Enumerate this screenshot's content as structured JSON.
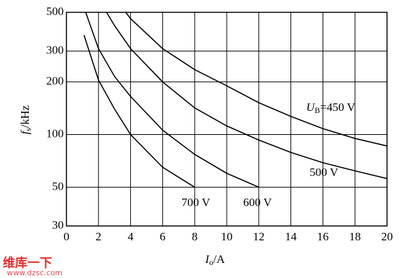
{
  "chart_data": {
    "type": "line",
    "y_label": {
      "main": "f",
      "sub": "s",
      "rest": "/kHz"
    },
    "x_label": {
      "main": "I",
      "sub": "o",
      "rest": "/A"
    },
    "label_prefix": {
      "main": "U",
      "sub": "B",
      "rest": "="
    },
    "xlim": [
      0,
      20
    ],
    "xticks": [
      0,
      2,
      4,
      6,
      8,
      10,
      12,
      14,
      16,
      18,
      20
    ],
    "ylim": [
      30,
      500
    ],
    "yticks": [
      30,
      50,
      100,
      200,
      300,
      500
    ],
    "log_y": true,
    "grid": true,
    "series": [
      {
        "name": "450 V",
        "color": "#000000",
        "x": [
          3.7,
          4,
          6,
          8,
          10,
          12,
          14,
          16,
          18,
          20
        ],
        "values": [
          500,
          460,
          310,
          235,
          190,
          152,
          127,
          108,
          95,
          86
        ]
      },
      {
        "name": "500 V",
        "color": "#000000",
        "x": [
          2.5,
          3,
          4,
          6,
          8,
          10,
          12,
          14,
          16,
          18,
          20
        ],
        "values": [
          500,
          420,
          310,
          200,
          142,
          112,
          93,
          79,
          69,
          62,
          56
        ]
      },
      {
        "name": "600 V",
        "color": "#000000",
        "x": [
          1.2,
          2,
          3,
          4,
          6,
          8,
          10,
          12
        ],
        "values": [
          500,
          310,
          215,
          165,
          106,
          77,
          60,
          50
        ]
      },
      {
        "name": "700 V",
        "color": "#000000",
        "x": [
          1.1,
          2,
          3,
          4,
          6,
          8
        ],
        "values": [
          370,
          205,
          140,
          100,
          65,
          50
        ]
      }
    ],
    "watermark": {
      "brand": "维库一下",
      "url": "www.dzsc.com"
    }
  }
}
